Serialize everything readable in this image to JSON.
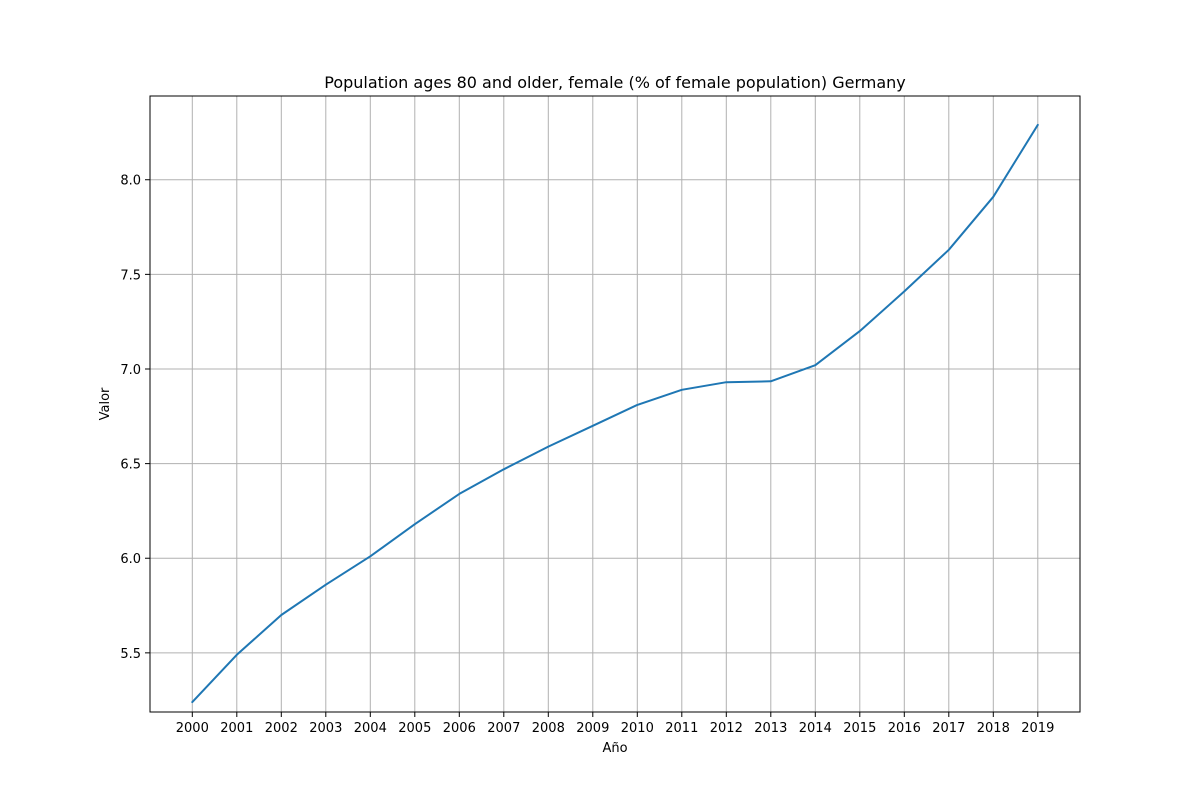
{
  "chart_data": {
    "type": "line",
    "title": "Population ages 80 and older, female (% of female population) Germany",
    "xlabel": "Año",
    "ylabel": "Valor",
    "x": [
      "2000",
      "2001",
      "2002",
      "2003",
      "2004",
      "2005",
      "2006",
      "2007",
      "2008",
      "2009",
      "2010",
      "2011",
      "2012",
      "2013",
      "2014",
      "2015",
      "2016",
      "2017",
      "2018",
      "2019"
    ],
    "series": [
      {
        "values": [
          5.24,
          5.49,
          5.7,
          5.86,
          6.01,
          6.18,
          6.34,
          6.47,
          6.59,
          6.7,
          6.81,
          6.89,
          6.93,
          6.935,
          7.02,
          7.2,
          7.41,
          7.63,
          7.91,
          8.29
        ]
      }
    ],
    "yticks": [
      5.5,
      6.0,
      6.5,
      7.0,
      7.5,
      8.0
    ],
    "ytick_labels": [
      "5.5",
      "6.0",
      "6.5",
      "7.0",
      "7.5",
      "8.0"
    ],
    "ylim": [
      5.1875,
      8.4425
    ],
    "grid": true,
    "colors": {
      "line": "#1f77b4",
      "grid": "#b0b0b0",
      "axes": "#000000"
    }
  }
}
